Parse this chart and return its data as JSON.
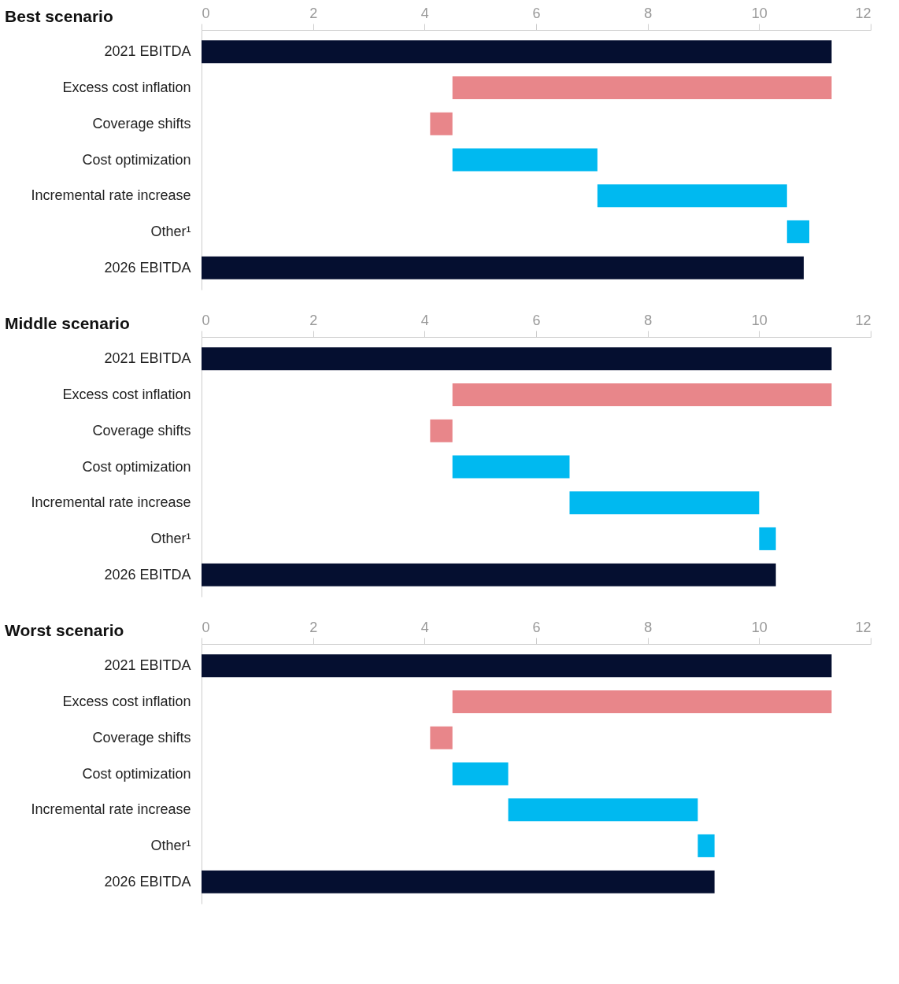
{
  "chart_data": [
    {
      "type": "bar",
      "orientation": "horizontal",
      "title": "Best scenario",
      "categories": [
        "2021 EBITDA",
        "Excess cost inflation",
        "Coverage shifts",
        "Cost optimization",
        "Incremental rate increase",
        "Other¹",
        "2026 EBITDA"
      ],
      "base": [
        0,
        4.5,
        4.1,
        4.5,
        7.1,
        10.5,
        0
      ],
      "values": [
        11.3,
        6.8,
        0.4,
        2.6,
        3.4,
        0.4,
        10.8
      ],
      "colors": [
        "#050f30",
        "#e8868a",
        "#e8868a",
        "#00b9f0",
        "#00b9f0",
        "#00b9f0",
        "#050f30"
      ],
      "xlim": [
        0,
        12
      ],
      "xticks": [
        0,
        2,
        4,
        6,
        8,
        10,
        12
      ],
      "grid": false
    },
    {
      "type": "bar",
      "orientation": "horizontal",
      "title": "Middle scenario",
      "categories": [
        "2021 EBITDA",
        "Excess cost inflation",
        "Coverage shifts",
        "Cost optimization",
        "Incremental rate increase",
        "Other¹",
        "2026 EBITDA"
      ],
      "base": [
        0,
        4.5,
        4.1,
        4.5,
        6.6,
        10.0,
        0
      ],
      "values": [
        11.3,
        6.8,
        0.4,
        2.1,
        3.4,
        0.3,
        10.3
      ],
      "colors": [
        "#050f30",
        "#e8868a",
        "#e8868a",
        "#00b9f0",
        "#00b9f0",
        "#00b9f0",
        "#050f30"
      ],
      "xlim": [
        0,
        12
      ],
      "xticks": [
        0,
        2,
        4,
        6,
        8,
        10,
        12
      ],
      "grid": false
    },
    {
      "type": "bar",
      "orientation": "horizontal",
      "title": "Worst scenario",
      "categories": [
        "2021 EBITDA",
        "Excess cost inflation",
        "Coverage shifts",
        "Cost optimization",
        "Incremental rate increase",
        "Other¹",
        "2026 EBITDA"
      ],
      "base": [
        0,
        4.5,
        4.1,
        4.5,
        5.5,
        8.9,
        0
      ],
      "values": [
        11.3,
        6.8,
        0.4,
        1.0,
        3.4,
        0.3,
        9.2
      ],
      "colors": [
        "#050f30",
        "#e8868a",
        "#e8868a",
        "#00b9f0",
        "#00b9f0",
        "#00b9f0",
        "#050f30"
      ],
      "xlim": [
        0,
        12
      ],
      "xticks": [
        0,
        2,
        4,
        6,
        8,
        10,
        12
      ],
      "grid": false
    }
  ]
}
